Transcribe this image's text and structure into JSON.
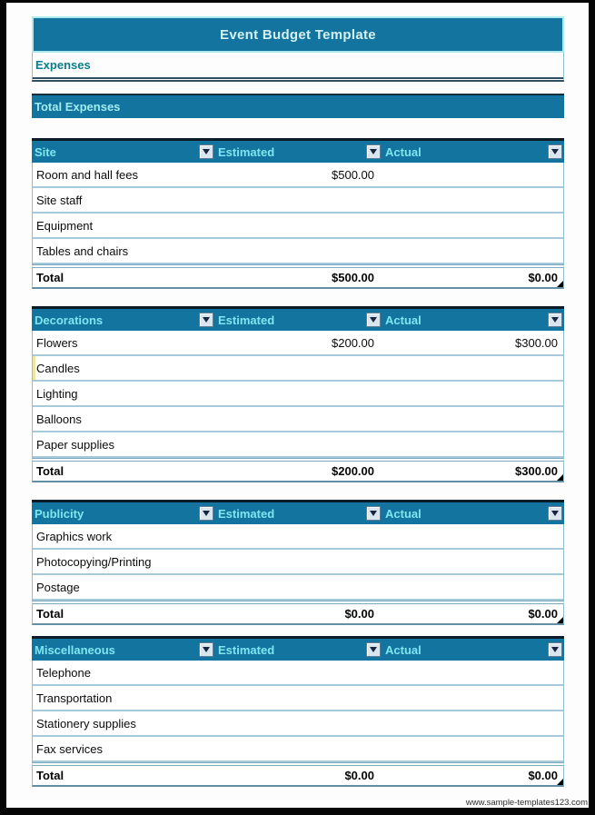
{
  "page": {
    "title": "Event Budget Template",
    "expenses_label": "Expenses",
    "total_expenses_label": "Total Expenses",
    "total_label": "Total",
    "watermark": "www.sample-templates123.com"
  },
  "columns": {
    "estimated": "Estimated",
    "actual": "Actual"
  },
  "colors": {
    "teal_bar": "#1474A0",
    "section_label_text": "#7DE7F0",
    "title_text": "#D3F1F3",
    "expenses_text": "#0A7C8C",
    "row_border": "#A6CAD9",
    "dropdown_arrow": "#17253F"
  },
  "icons": {
    "filter_dropdown": "chevron-down-icon"
  },
  "sections": [
    {
      "name": "Site",
      "rows": [
        {
          "label": "Room and hall fees",
          "estimated": "$500.00",
          "actual": ""
        },
        {
          "label": "Site staff",
          "estimated": "",
          "actual": ""
        },
        {
          "label": "Equipment",
          "estimated": "",
          "actual": ""
        },
        {
          "label": "Tables and chairs",
          "estimated": "",
          "actual": ""
        }
      ],
      "total": {
        "estimated": "$500.00",
        "actual": "$0.00"
      }
    },
    {
      "name": "Decorations",
      "rows": [
        {
          "label": "Flowers",
          "estimated": "$200.00",
          "actual": "$300.00"
        },
        {
          "label": "Candles",
          "estimated": "",
          "actual": "",
          "highlighted": true
        },
        {
          "label": "Lighting",
          "estimated": "",
          "actual": ""
        },
        {
          "label": "Balloons",
          "estimated": "",
          "actual": ""
        },
        {
          "label": "Paper supplies",
          "estimated": "",
          "actual": ""
        }
      ],
      "total": {
        "estimated": "$200.00",
        "actual": "$300.00"
      }
    },
    {
      "name": "Publicity",
      "rows": [
        {
          "label": "Graphics work",
          "estimated": "",
          "actual": ""
        },
        {
          "label": "Photocopying/Printing",
          "estimated": "",
          "actual": ""
        },
        {
          "label": "Postage",
          "estimated": "",
          "actual": ""
        }
      ],
      "total": {
        "estimated": "$0.00",
        "actual": "$0.00"
      }
    },
    {
      "name": "Miscellaneous",
      "rows": [
        {
          "label": "Telephone",
          "estimated": "",
          "actual": ""
        },
        {
          "label": "Transportation",
          "estimated": "",
          "actual": ""
        },
        {
          "label": "Stationery supplies",
          "estimated": "",
          "actual": ""
        },
        {
          "label": "Fax services",
          "estimated": "",
          "actual": ""
        }
      ],
      "total": {
        "estimated": "$0.00",
        "actual": "$0.00"
      }
    }
  ]
}
